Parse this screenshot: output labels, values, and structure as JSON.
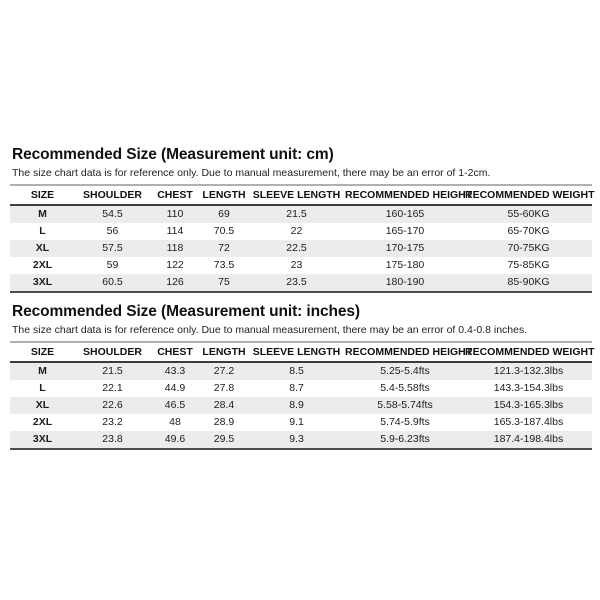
{
  "page": {
    "background": "#ffffff"
  },
  "colors": {
    "title_text": "#111111",
    "body_text": "#1c1c1c",
    "row_alt_bg": "#ececec",
    "header_top_border": "#b0b0b0",
    "header_bottom_border": "#3c3c3c",
    "table_bottom_border": "#4d4d4d"
  },
  "chart_data": [
    {
      "type": "table",
      "title": "Recommended Size (Measurement unit: cm)",
      "note": "The size chart data is for reference only. Due to manual measurement, there may be an error of 1-2cm.",
      "columns": [
        "SIZE",
        "SHOULDER",
        "CHEST",
        "LENGTH",
        "SLEEVE LENGTH",
        "RECOMMENDED HEIGHT",
        "RECOMMENDED WEIGHT"
      ],
      "rows": [
        [
          "M",
          "54.5",
          "110",
          "69",
          "21.5",
          "160-165",
          "55-60KG"
        ],
        [
          "L",
          "56",
          "114",
          "70.5",
          "22",
          "165-170",
          "65-70KG"
        ],
        [
          "XL",
          "57.5",
          "118",
          "72",
          "22.5",
          "170-175",
          "70-75KG"
        ],
        [
          "2XL",
          "59",
          "122",
          "73.5",
          "23",
          "175-180",
          "75-85KG"
        ],
        [
          "3XL",
          "60.5",
          "126",
          "75",
          "23.5",
          "180-190",
          "85-90KG"
        ]
      ]
    },
    {
      "type": "table",
      "title": "Recommended Size (Measurement unit: inches)",
      "note": "The size chart data is for reference only. Due to manual measurement, there may be an error of 0.4-0.8 inches.",
      "columns": [
        "SIZE",
        "SHOULDER",
        "CHEST",
        "LENGTH",
        "SLEEVE LENGTH",
        "RECOMMENDED HEIGHT",
        "RECOMMENDED WEIGHT"
      ],
      "rows": [
        [
          "M",
          "21.5",
          "43.3",
          "27.2",
          "8.5",
          "5.25-5.4fts",
          "121.3-132.3lbs"
        ],
        [
          "L",
          "22.1",
          "44.9",
          "27.8",
          "8.7",
          "5.4-5.58fts",
          "143.3-154.3lbs"
        ],
        [
          "XL",
          "22.6",
          "46.5",
          "28.4",
          "8.9",
          "5.58-5.74fts",
          "154.3-165.3lbs"
        ],
        [
          "2XL",
          "23.2",
          "48",
          "28.9",
          "9.1",
          "5.74-5.9fts",
          "165.3-187.4lbs"
        ],
        [
          "3XL",
          "23.8",
          "49.6",
          "29.5",
          "9.3",
          "5.9-6.23fts",
          "187.4-198.4lbs"
        ]
      ]
    }
  ]
}
